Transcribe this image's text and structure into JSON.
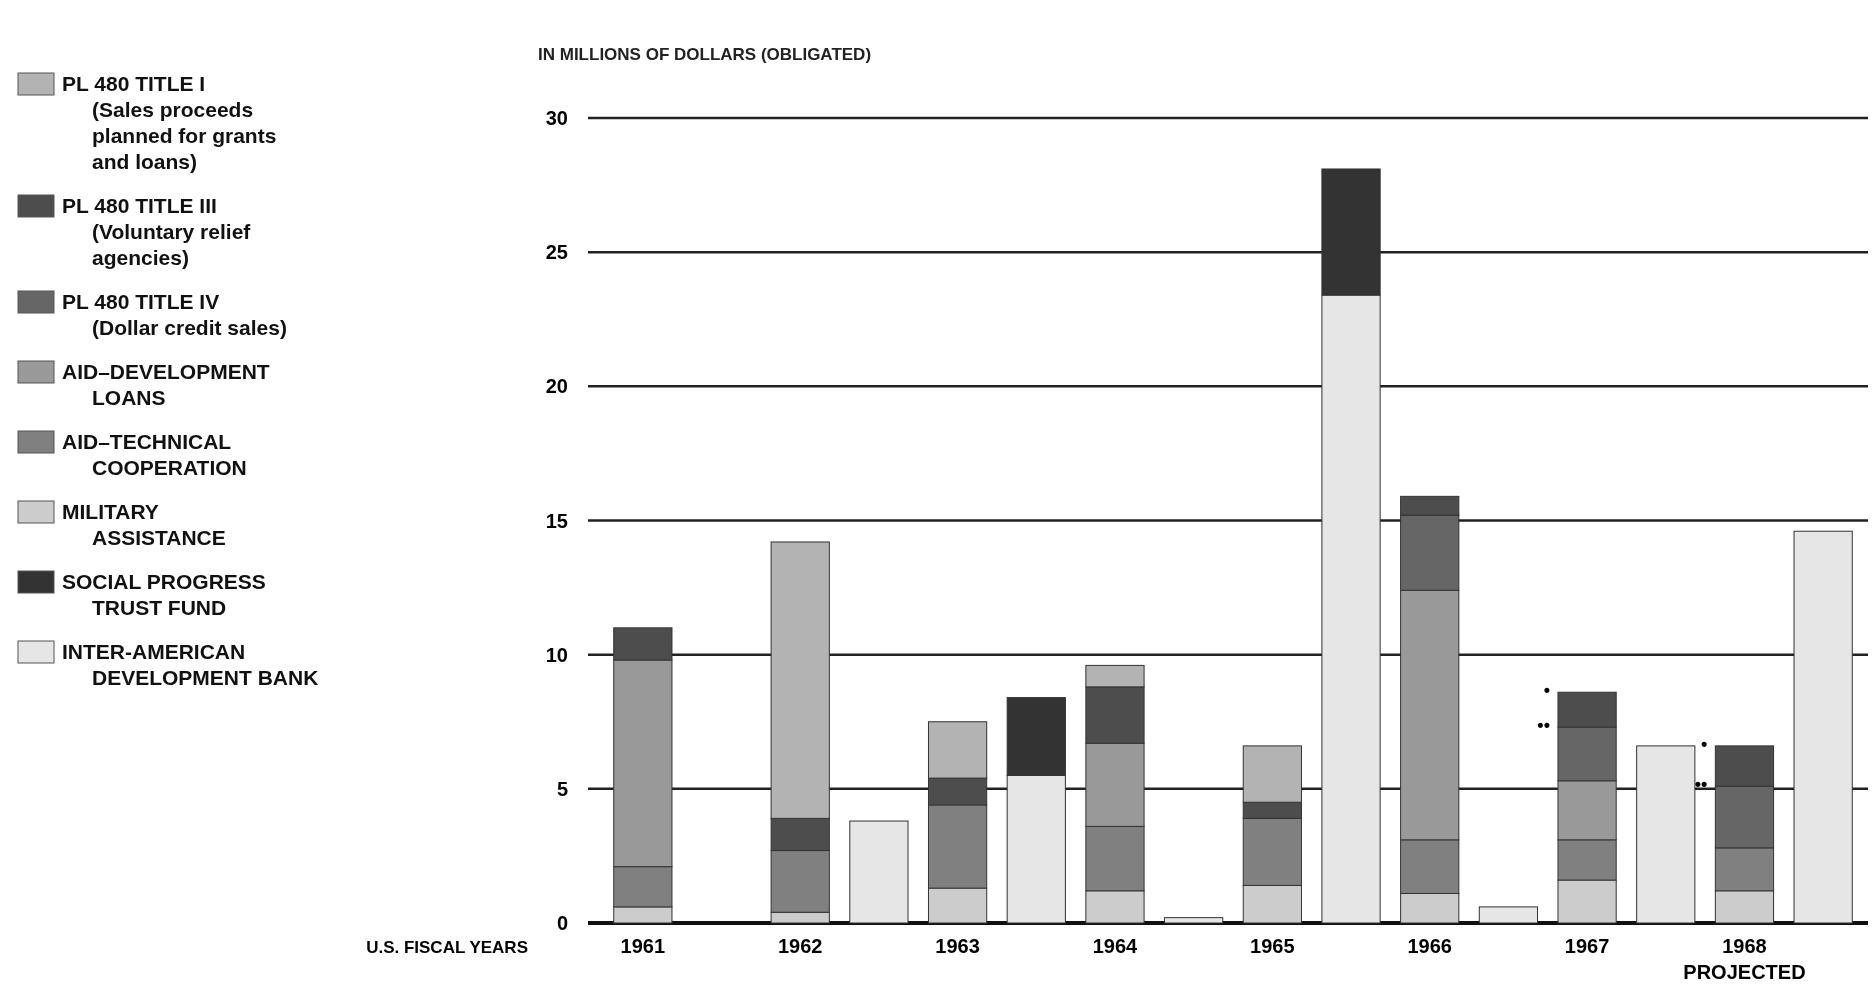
{
  "chart_data": {
    "type": "bar",
    "stacked": true,
    "ylabel": "IN MILLIONS OF DOLLARS (OBLIGATED)",
    "xlabel": "U.S. FISCAL YEARS",
    "categories": [
      "1961",
      null,
      "1962",
      null,
      "1963",
      null,
      "1964",
      null,
      "1965",
      null,
      "1966",
      null,
      "1967",
      null,
      "1968 PROJECTED",
      null
    ],
    "ylim": [
      0,
      30
    ],
    "yticks": [
      0,
      5,
      10,
      15,
      20,
      25,
      30
    ],
    "grid": "y",
    "legend": "left",
    "series": [
      {
        "name": "INTER-AMERICAN DEVELOPMENT BANK",
        "color": "#e6e6e6",
        "values": [
          null,
          null,
          null,
          3.8,
          null,
          5.5,
          null,
          0.2,
          null,
          23.4,
          null,
          0.6,
          null,
          6.6,
          null,
          14.6
        ]
      },
      {
        "name": "SOCIAL PROGRESS TRUST FUND",
        "color": "#333333",
        "values": [
          null,
          null,
          null,
          0,
          null,
          2.9,
          null,
          0,
          null,
          4.7,
          null,
          0,
          null,
          0,
          null,
          0
        ]
      },
      {
        "name": "MILITARY ASSISTANCE",
        "color": "#cccccc",
        "values": [
          0.6,
          null,
          0.4,
          null,
          1.3,
          null,
          1.2,
          null,
          1.4,
          null,
          1.1,
          null,
          1.6,
          null,
          1.2,
          null
        ]
      },
      {
        "name": "AID–TECHNICAL COOPERATION",
        "color": "#808080",
        "values": [
          1.5,
          null,
          2.3,
          null,
          3.1,
          null,
          2.4,
          null,
          2.5,
          null,
          2.0,
          null,
          1.5,
          null,
          1.6,
          null
        ]
      },
      {
        "name": "AID–DEVELOPMENT LOANS",
        "color": "#999999",
        "values": [
          7.7,
          null,
          0,
          null,
          0,
          null,
          3.1,
          null,
          0,
          null,
          9.3,
          null,
          2.2,
          null,
          0,
          null
        ]
      },
      {
        "name": "PL 480 TITLE IV (Dollar credit sales)",
        "color": "#666666",
        "values": [
          0,
          null,
          0,
          null,
          0,
          null,
          0,
          null,
          0,
          null,
          2.8,
          null,
          2.0,
          null,
          2.3,
          null
        ]
      },
      {
        "name": "PL 480 TITLE III (Voluntary relief agencies)",
        "color": "#4d4d4d",
        "values": [
          1.2,
          null,
          1.2,
          null,
          1.0,
          null,
          2.1,
          null,
          0.6,
          null,
          0.7,
          null,
          1.3,
          null,
          1.5,
          null
        ]
      },
      {
        "name": "PL 480 TITLE I (Sales proceeds planned for grants and loans)",
        "color": "#b3b3b3",
        "values": [
          0,
          null,
          10.3,
          null,
          2.1,
          null,
          0.8,
          null,
          2.1,
          null,
          0,
          null,
          0,
          null,
          0,
          null
        ]
      }
    ],
    "annotations": [
      {
        "text": "•",
        "x": "1967",
        "y": 8.6
      },
      {
        "text": "••",
        "x": "1967",
        "y": 7.3
      },
      {
        "text": "•",
        "x": "1968 PROJECTED",
        "y": 6.6
      },
      {
        "text": "••",
        "x": "1968 PROJECTED",
        "y": 5.1
      }
    ]
  }
}
